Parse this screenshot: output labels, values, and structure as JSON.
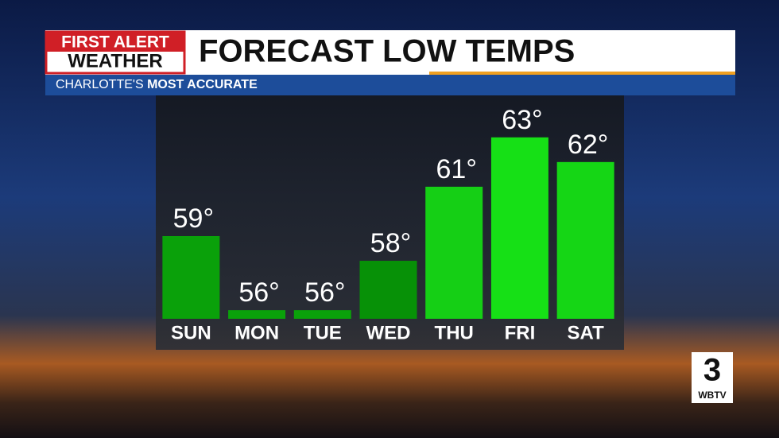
{
  "chart_data": {
    "type": "bar",
    "title": "FORECAST LOW TEMPS",
    "subtitle": [
      "CHARLOTTE'S",
      "MOST ACCURATE"
    ],
    "categories": [
      "SUN",
      "MON",
      "TUE",
      "WED",
      "THU",
      "FRI",
      "SAT"
    ],
    "values": [
      59,
      56,
      56,
      58,
      61,
      63,
      62
    ],
    "value_labels": [
      "59°",
      "56°",
      "56°",
      "58°",
      "61°",
      "63°",
      "62°"
    ],
    "colors": [
      "#0aa10a",
      "#0aa10a",
      "#0aa10a",
      "#079107",
      "#15cf15",
      "#16e016",
      "#15d615"
    ],
    "ylim": [
      55.65,
      64.7
    ]
  },
  "branding": {
    "logo": [
      "FIRST ALERT",
      "WEATHER"
    ],
    "station": [
      "3",
      "WBTV"
    ]
  }
}
